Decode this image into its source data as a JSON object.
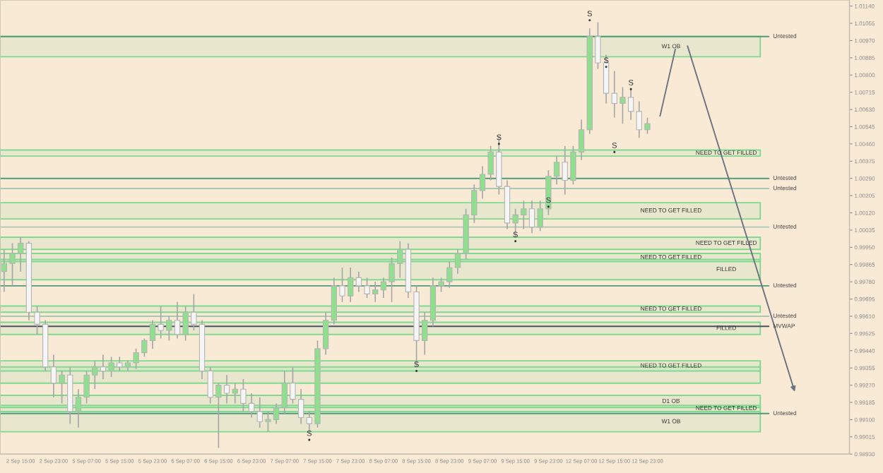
{
  "chart_data": {
    "type": "candlestick",
    "categories": [
      null,
      null,
      "2 Sep 15:00",
      null,
      null,
      null,
      "2 Sep 23:00",
      null,
      null,
      null,
      "5 Sep 07:00",
      null,
      null,
      null,
      "5 Sep 15:00",
      null,
      null,
      null,
      "5 Sep 23:00",
      null,
      null,
      null,
      "6 Sep 07:00",
      null,
      null,
      null,
      "6 Sep 15:00",
      null,
      null,
      null,
      "6 Sep 23:00",
      null,
      null,
      null,
      "7 Sep 07:00",
      null,
      null,
      null,
      "7 Sep 15:00",
      null,
      null,
      null,
      "7 Sep 23:00",
      null,
      null,
      null,
      "8 Sep 07:00",
      null,
      null,
      null,
      "8 Sep 15:00",
      null,
      null,
      null,
      "8 Sep 23:00",
      null,
      null,
      null,
      "9 Sep 07:00",
      null,
      null,
      null,
      "9 Sep 15:00",
      null,
      null,
      null,
      "9 Sep 23:00",
      null,
      null,
      null,
      "12 Sep 07:00",
      null,
      null,
      null,
      "12 Sep 15:00",
      null,
      null,
      null,
      "12 Sep 23:00",
      null,
      null,
      null,
      null,
      null,
      null,
      null,
      null,
      null,
      null,
      null,
      null,
      null,
      null,
      null,
      null,
      null,
      null,
      null,
      null,
      null,
      null,
      null,
      null
    ],
    "ohlc": [
      [
        0.9983,
        0.9994,
        0.9973,
        0.9987
      ],
      [
        0.9987,
        0.9997,
        0.9976,
        0.9992
      ],
      [
        0.9992,
        1.0,
        0.9983,
        0.9997
      ],
      [
        0.9997,
        0.9998,
        0.9959,
        0.9963
      ],
      [
        0.9963,
        0.9966,
        0.9952,
        0.9957
      ],
      [
        0.9957,
        0.9959,
        0.9934,
        0.9936
      ],
      [
        0.9936,
        0.9942,
        0.9921,
        0.9928
      ],
      [
        0.9928,
        0.9934,
        0.9918,
        0.9932
      ],
      [
        0.9932,
        0.9936,
        0.9908,
        0.9914
      ],
      [
        0.9914,
        0.9925,
        0.9906,
        0.9921
      ],
      [
        0.9921,
        0.9934,
        0.9918,
        0.9932
      ],
      [
        0.9932,
        0.9939,
        0.9925,
        0.9936
      ],
      [
        0.9936,
        0.9942,
        0.993,
        0.9934
      ],
      [
        0.9934,
        0.9941,
        0.9931,
        0.9938
      ],
      [
        0.9938,
        0.9941,
        0.9934,
        0.9936
      ],
      [
        0.9936,
        0.9939,
        0.9934,
        0.9938
      ],
      [
        0.9938,
        0.9945,
        0.9935,
        0.9943
      ],
      [
        0.9943,
        0.995,
        0.9941,
        0.9949
      ],
      [
        0.9949,
        0.9959,
        0.9945,
        0.9957
      ],
      [
        0.9957,
        0.9966,
        0.995,
        0.9954
      ],
      [
        0.9954,
        0.9961,
        0.9949,
        0.9959
      ],
      [
        0.9959,
        0.9968,
        0.995,
        0.9952
      ],
      [
        0.9952,
        0.9966,
        0.9949,
        0.9963
      ],
      [
        0.9963,
        0.9972,
        0.9954,
        0.9957
      ],
      [
        0.9957,
        0.9959,
        0.993,
        0.9934
      ],
      [
        0.9934,
        0.9936,
        0.9918,
        0.9921
      ],
      [
        0.9921,
        0.9928,
        0.9896,
        0.9927
      ],
      [
        0.9927,
        0.9932,
        0.9918,
        0.9923
      ],
      [
        0.9923,
        0.9928,
        0.9918,
        0.9925
      ],
      [
        0.9925,
        0.993,
        0.9914,
        0.9918
      ],
      [
        0.9918,
        0.9923,
        0.9911,
        0.9914
      ],
      [
        0.9914,
        0.9921,
        0.9906,
        0.9909
      ],
      [
        0.9909,
        0.9914,
        0.9904,
        0.991
      ],
      [
        0.991,
        0.9918,
        0.9908,
        0.9916
      ],
      [
        0.9916,
        0.9934,
        0.9913,
        0.9928
      ],
      [
        0.9928,
        0.9936,
        0.9918,
        0.992
      ],
      [
        0.992,
        0.9925,
        0.9908,
        0.9911
      ],
      [
        0.9911,
        0.9914,
        0.9903,
        0.9908
      ],
      [
        0.9908,
        0.9949,
        0.9906,
        0.9945
      ],
      [
        0.9945,
        0.9963,
        0.9942,
        0.9959
      ],
      [
        0.9959,
        0.998,
        0.9957,
        0.9976
      ],
      [
        0.9976,
        0.9985,
        0.9968,
        0.9971
      ],
      [
        0.9971,
        0.9985,
        0.9968,
        0.998
      ],
      [
        0.998,
        0.9983,
        0.9973,
        0.9976
      ],
      [
        0.9976,
        0.998,
        0.997,
        0.9972
      ],
      [
        0.9972,
        0.9978,
        0.9968,
        0.9974
      ],
      [
        0.9974,
        0.998,
        0.997,
        0.9978
      ],
      [
        0.9978,
        0.999,
        0.9968,
        0.9987
      ],
      [
        0.9987,
        0.9998,
        0.998,
        0.9994
      ],
      [
        0.9994,
        0.9997,
        0.997,
        0.9973
      ],
      [
        0.9973,
        0.9976,
        0.9936,
        0.9949
      ],
      [
        0.9949,
        0.9963,
        0.9942,
        0.9959
      ],
      [
        0.9959,
        0.998,
        0.9956,
        0.9976
      ],
      [
        0.9976,
        0.998,
        0.9973,
        0.9978
      ],
      [
        0.9978,
        0.9988,
        0.9975,
        0.9985
      ],
      [
        0.9985,
        0.9994,
        0.9982,
        0.9992
      ],
      [
        0.9992,
        1.0014,
        0.9989,
        1.0011
      ],
      [
        1.0011,
        1.0026,
        1.0007,
        1.0023
      ],
      [
        1.0023,
        1.0035,
        1.0019,
        1.0031
      ],
      [
        1.0031,
        1.0045,
        1.0028,
        1.0042
      ],
      [
        1.0042,
        1.005,
        1.0021,
        1.0025
      ],
      [
        1.0025,
        1.0028,
        1.0004,
        1.0007
      ],
      [
        1.0007,
        1.0014,
        1.0,
        1.0011
      ],
      [
        1.0011,
        1.0018,
        1.0004,
        1.0014
      ],
      [
        1.0014,
        1.0018,
        1.0002,
        1.0005
      ],
      [
        1.0005,
        1.0018,
        1.0003,
        1.0014
      ],
      [
        1.0014,
        1.0033,
        1.0011,
        1.003
      ],
      [
        1.003,
        1.004,
        1.0026,
        1.0037
      ],
      [
        1.0037,
        1.0045,
        1.0021,
        1.0028
      ],
      [
        1.0028,
        1.0045,
        1.0026,
        1.0042
      ],
      [
        1.0042,
        1.0058,
        1.0038,
        1.0053
      ],
      [
        1.0053,
        1.0103,
        1.0051,
        1.0099
      ],
      [
        1.0099,
        1.0106,
        1.0083,
        1.0086
      ],
      [
        1.0086,
        1.009,
        1.0066,
        1.0071
      ],
      [
        1.0071,
        1.0082,
        1.0059,
        1.0066
      ],
      [
        1.0066,
        1.0074,
        1.0056,
        1.0069
      ],
      [
        1.0069,
        1.0073,
        1.0058,
        1.0062
      ],
      [
        1.0062,
        1.0067,
        1.0049,
        1.0053
      ],
      [
        1.0053,
        1.0059,
        1.0051,
        1.0056
      ],
      null,
      null,
      null,
      null,
      null,
      null,
      null,
      null,
      null,
      null,
      null,
      null,
      null,
      null,
      null,
      null,
      null,
      null,
      null,
      null,
      null,
      null,
      null,
      null
    ],
    "colors": [
      "#8fdf8f",
      "#8fdf8f",
      "#8fdf8f",
      "#f5f5f5",
      "#f5f5f5",
      "#f5f5f5",
      "#f5f5f5",
      "#8fdf8f",
      "#f5f5f5",
      "#8fdf8f",
      "#8fdf8f",
      "#8fdf8f",
      "#f5f5f5",
      "#8fdf8f",
      "#f5f5f5",
      "#8fdf8f",
      "#8fdf8f",
      "#8fdf8f",
      "#8fdf8f",
      "#f5f5f5",
      "#8fdf8f",
      "#f5f5f5",
      "#8fdf8f",
      "#f5f5f5",
      "#f5f5f5",
      "#f5f5f5",
      "#8fdf8f",
      "#f5f5f5",
      "#8fdf8f",
      "#f5f5f5",
      "#f5f5f5",
      "#f5f5f5",
      "#8fdf8f",
      "#8fdf8f",
      "#8fdf8f",
      "#f5f5f5",
      "#f5f5f5",
      "#f5f5f5",
      "#8fdf8f",
      "#8fdf8f",
      "#8fdf8f",
      "#f5f5f5",
      "#8fdf8f",
      "#f5f5f5",
      "#f5f5f5",
      "#8fdf8f",
      "#8fdf8f",
      "#8fdf8f",
      "#8fdf8f",
      "#f5f5f5",
      "#f5f5f5",
      "#8fdf8f",
      "#8fdf8f",
      "#8fdf8f",
      "#8fdf8f",
      "#8fdf8f",
      "#8fdf8f",
      "#8fdf8f",
      "#8fdf8f",
      "#8fdf8f",
      "#f5f5f5",
      "#f5f5f5",
      "#8fdf8f",
      "#8fdf8f",
      "#f5f5f5",
      "#8fdf8f",
      "#8fdf8f",
      "#8fdf8f",
      "#f5f5f5",
      "#8fdf8f",
      "#8fdf8f",
      "#8fdf8f",
      "#f5f5f5",
      "#f5f5f5",
      "#f5f5f5",
      "#8fdf8f",
      "#f5f5f5",
      "#f5f5f5",
      "#8fdf8f",
      null,
      null,
      null,
      null,
      null,
      null,
      null,
      null,
      null,
      null,
      null,
      null,
      null,
      null,
      null,
      null,
      null,
      null,
      null,
      null,
      null,
      null,
      null,
      null
    ],
    "series": [
      {
        "type": "scatter",
        "marker": "circle",
        "color": "#333333",
        "values": [
          null,
          null,
          null,
          null,
          null,
          null,
          null,
          null,
          null,
          null,
          null,
          null,
          null,
          null,
          null,
          null,
          null,
          null,
          null,
          null,
          null,
          null,
          null,
          null,
          null,
          null,
          null,
          null,
          null,
          null,
          null,
          null,
          null,
          null,
          null,
          null,
          null,
          0.99,
          null,
          null,
          null,
          null,
          null,
          null,
          null,
          null,
          null,
          null,
          null,
          null,
          0.9934,
          null,
          null,
          null,
          null,
          null,
          null,
          null,
          null,
          null,
          1.0046,
          null,
          0.9998,
          null,
          null,
          null,
          1.0015,
          null,
          null,
          null,
          null,
          1.0107,
          null,
          1.0084,
          1.0042,
          null,
          1.0073,
          null,
          null,
          null,
          null,
          null,
          null,
          null,
          null,
          null,
          null,
          null,
          null,
          null,
          null,
          null,
          null,
          null,
          null,
          null,
          null,
          null,
          null,
          null,
          null,
          null,
          null
        ],
        "value_labels": [
          null,
          null,
          null,
          null,
          null,
          null,
          null,
          null,
          null,
          null,
          null,
          null,
          null,
          null,
          null,
          null,
          null,
          null,
          null,
          null,
          null,
          null,
          null,
          null,
          null,
          null,
          null,
          null,
          null,
          null,
          null,
          null,
          null,
          null,
          null,
          null,
          null,
          "S",
          null,
          null,
          null,
          null,
          null,
          null,
          null,
          null,
          null,
          null,
          null,
          null,
          "S",
          null,
          null,
          null,
          null,
          null,
          null,
          null,
          null,
          null,
          "S",
          null,
          "S",
          null,
          null,
          null,
          "S",
          null,
          null,
          null,
          null,
          "S",
          null,
          "S",
          "S",
          null,
          "S",
          null,
          null,
          null,
          null,
          null,
          null,
          null,
          null,
          null,
          null,
          null,
          null,
          null,
          null,
          null,
          null,
          null,
          null,
          null,
          null,
          null,
          null,
          null,
          null,
          null,
          null
        ]
      }
    ],
    "ylim": [
      0.9893,
      1.0117
    ],
    "yticks": [
      {
        "value": 1.0114,
        "label": "1.01140"
      },
      {
        "value": 1.01055,
        "label": "1.01055"
      },
      {
        "value": 1.0097,
        "label": "1.00970"
      },
      {
        "value": 1.00885,
        "label": "1.00885"
      },
      {
        "value": 1.008,
        "label": "1.00800"
      },
      {
        "value": 1.00715,
        "label": "1.00715"
      },
      {
        "value": 1.0063,
        "label": "1.00630"
      },
      {
        "value": 1.00545,
        "label": "1.00545"
      },
      {
        "value": 1.0046,
        "label": "1.00460"
      },
      {
        "value": 1.00375,
        "label": "1.00375"
      },
      {
        "value": 1.0029,
        "label": "1.00290"
      },
      {
        "value": 1.00205,
        "label": "1.00205"
      },
      {
        "value": 1.0012,
        "label": "1.00120"
      },
      {
        "value": 1.00035,
        "label": "1.00035"
      },
      {
        "value": 0.9995,
        "label": "0.99950"
      },
      {
        "value": 0.99865,
        "label": "0.99865"
      },
      {
        "value": 0.9978,
        "label": "0.99780"
      },
      {
        "value": 0.99695,
        "label": "0.99695"
      },
      {
        "value": 0.9961,
        "label": "0.99610"
      },
      {
        "value": 0.99525,
        "label": "0.99525"
      },
      {
        "value": 0.9944,
        "label": "0.99440"
      },
      {
        "value": 0.99355,
        "label": "0.99355"
      },
      {
        "value": 0.9927,
        "label": "0.99270"
      },
      {
        "value": 0.99185,
        "label": "0.99185"
      },
      {
        "value": 0.991,
        "label": "0.99100"
      },
      {
        "value": 0.99015,
        "label": "0.99015"
      },
      {
        "value": 0.9893,
        "label": "0.98930"
      }
    ],
    "bands": [
      {
        "axis": "y",
        "from": 1.0089,
        "to": 1.0099,
        "label": "W1 OB",
        "color": "#7fd98f"
      },
      {
        "axis": "y",
        "from": 1.004,
        "to": 1.0043,
        "label": "NEED TO GET FILLED",
        "color": "#7fd98f"
      },
      {
        "axis": "y",
        "from": 1.0009,
        "to": 1.0017,
        "label": "NEED TO GET FILLED",
        "color": "#7fd98f"
      },
      {
        "axis": "y",
        "from": 0.9994,
        "to": 1.0,
        "label": "NEED TO GET FILLED",
        "color": "#7fd98f"
      },
      {
        "axis": "y",
        "from": 0.9988,
        "to": 0.9992,
        "label": "NEED TO GET FILLED",
        "color": "#7fd98f"
      },
      {
        "axis": "y",
        "from": 0.9979,
        "to": 0.9989,
        "label": "FILLED",
        "color": "#7fd98f"
      },
      {
        "axis": "y",
        "from": 0.9963,
        "to": 0.9966,
        "label": "NEED TO GET FILLED",
        "color": "#7fd98f"
      },
      {
        "axis": "y",
        "from": 0.9952,
        "to": 0.9958,
        "label": "FILLED",
        "color": "#7fd98f"
      },
      {
        "axis": "y",
        "from": 0.9934,
        "to": 0.9939,
        "label": "NEED TO GET FILLED",
        "color": "#7fd98f"
      },
      {
        "axis": "y",
        "from": 0.9928,
        "to": 0.9936,
        "color": "#7fd98f"
      },
      {
        "axis": "y",
        "from": 0.9916,
        "to": 0.9922,
        "label": "D1 OB",
        "color": "#7fd98f"
      },
      {
        "axis": "y",
        "from": 0.9914,
        "to": 0.9917,
        "label": "NEED TO GET FILLED",
        "color": "#7fd98f"
      },
      {
        "axis": "y",
        "from": 0.9904,
        "to": 0.9914,
        "label": "W1 OB",
        "color": "#7fd98f"
      }
    ],
    "ref_lines": [
      {
        "axis": "y",
        "value": 1.0099,
        "label": "Untested",
        "color": "#4f9a7a"
      },
      {
        "axis": "y",
        "value": 1.0029,
        "label": "Untested",
        "color": "#4f9a7a"
      },
      {
        "axis": "y",
        "value": 1.0024,
        "label": "Untested",
        "color": "#a8c8b4"
      },
      {
        "axis": "y",
        "value": 1.0005,
        "label": "Untested",
        "color": "#a8c8b4"
      },
      {
        "axis": "y",
        "value": 0.9976,
        "label": "Untested",
        "color": "#4f9a7a"
      },
      {
        "axis": "y",
        "value": 0.9961,
        "label": "Untested",
        "color": "#a8c8b4"
      },
      {
        "axis": "y",
        "value": 0.9956,
        "label": "MVWAP",
        "color": "#4a5260"
      },
      {
        "axis": "y",
        "value": 0.9913,
        "label": "Untested",
        "color": "#4f9a7a"
      }
    ]
  }
}
